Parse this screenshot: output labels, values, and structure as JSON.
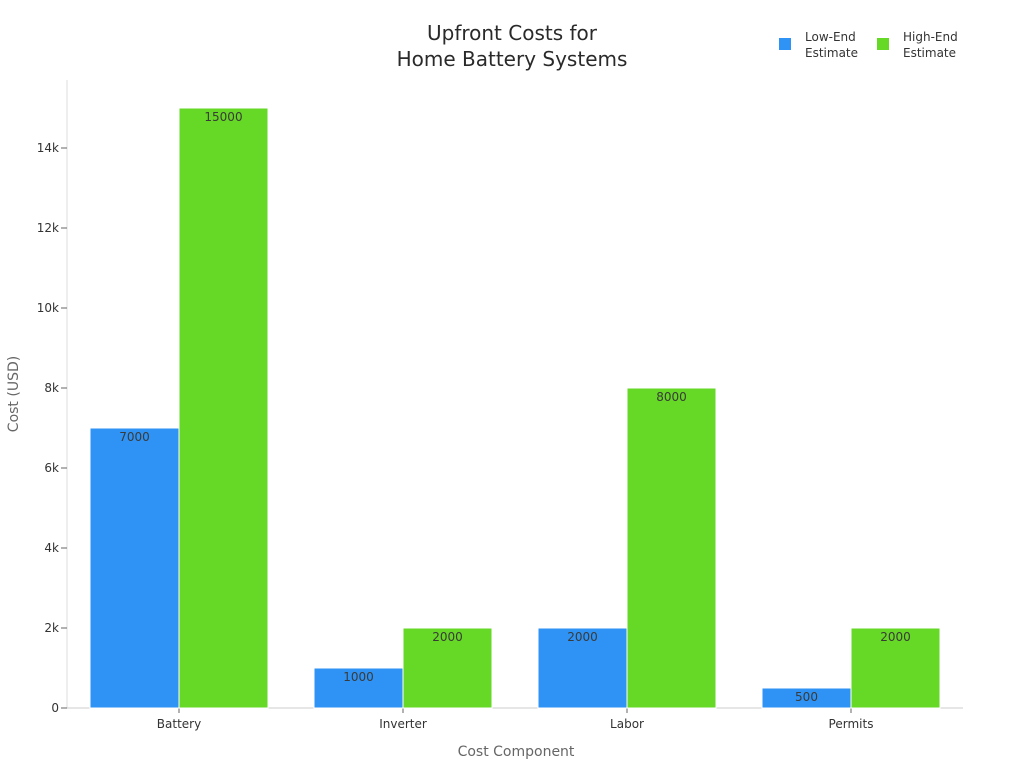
{
  "chart_data": {
    "type": "bar",
    "title": [
      "Upfront Costs for",
      "Home Battery Systems"
    ],
    "xlabel": "Cost Component",
    "ylabel": "Cost (USD)",
    "categories": [
      "Battery",
      "Inverter",
      "Labor",
      "Permits"
    ],
    "series": [
      {
        "name": [
          "Low-End",
          "Estimate"
        ],
        "color": "#2e93f5",
        "values": [
          7000,
          1000,
          2000,
          500
        ]
      },
      {
        "name": [
          "High-End",
          "Estimate"
        ],
        "color": "#66d926",
        "values": [
          15000,
          2000,
          8000,
          2000
        ]
      }
    ],
    "ylim": [
      0,
      15700
    ],
    "yticks": [
      0,
      2000,
      4000,
      6000,
      8000,
      10000,
      12000,
      14000
    ],
    "ytick_labels": [
      "0",
      "2k",
      "4k",
      "6k",
      "8k",
      "10k",
      "12k",
      "14k"
    ],
    "grid": false,
    "legend_position": "top-right",
    "show_data_labels": true
  }
}
